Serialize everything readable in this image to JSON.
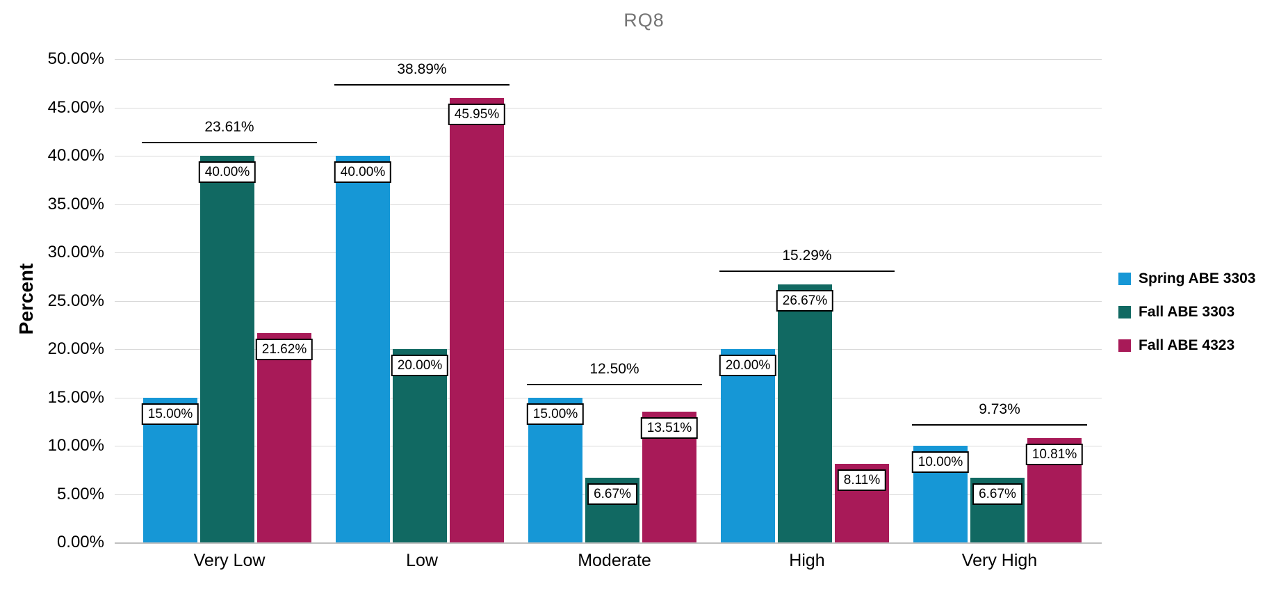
{
  "chart_data": {
    "type": "bar",
    "title": "RQ8",
    "xlabel": "",
    "ylabel": "Percent",
    "categories": [
      "Very Low",
      "Low",
      "Moderate",
      "High",
      "Very High"
    ],
    "series": [
      {
        "name": "Spring ABE 3303",
        "color": "#1697D6",
        "values": [
          15.0,
          40.0,
          15.0,
          20.0,
          10.0
        ],
        "data_labels": [
          "15.00%",
          "40.00%",
          "15.00%",
          "20.00%",
          "10.00%"
        ]
      },
      {
        "name": "Fall ABE 3303",
        "color": "#116962",
        "values": [
          40.0,
          20.0,
          6.67,
          26.67,
          6.67
        ],
        "data_labels": [
          "40.00%",
          "20.00%",
          "6.67%",
          "26.67%",
          "6.67%"
        ]
      },
      {
        "name": "Fall ABE 4323",
        "color": "#A81A58",
        "values": [
          21.62,
          45.95,
          13.51,
          8.11,
          10.81
        ],
        "data_labels": [
          "21.62%",
          "45.95%",
          "13.51%",
          "8.11%",
          "10.81%"
        ]
      }
    ],
    "group_mean_annotations": [
      {
        "category": "Very Low",
        "label": "23.61%",
        "value": 23.61
      },
      {
        "category": "Low",
        "label": "38.89%",
        "value": 38.89
      },
      {
        "category": "Moderate",
        "label": "12.50%",
        "value": 12.5
      },
      {
        "category": "High",
        "label": "15.29%",
        "value": 15.29
      },
      {
        "category": "Very High",
        "label": "9.73%",
        "value": 9.73
      }
    ],
    "ylim": [
      0,
      50
    ],
    "ytick_values": [
      0,
      5,
      10,
      15,
      20,
      25,
      30,
      35,
      40,
      45,
      50
    ],
    "ytick_labels": [
      "0.00%",
      "5.00%",
      "10.00%",
      "15.00%",
      "20.00%",
      "25.00%",
      "30.00%",
      "35.00%",
      "40.00%",
      "45.00%",
      "50.00%"
    ],
    "grid": true,
    "legend_position": "right",
    "title_color": "#757575"
  }
}
